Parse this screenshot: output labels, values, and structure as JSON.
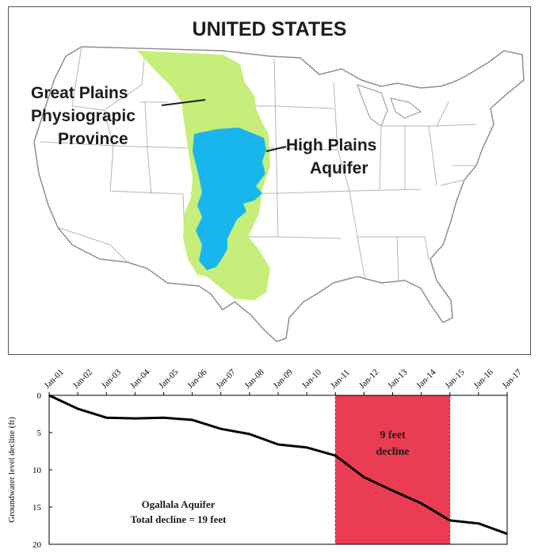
{
  "map": {
    "title": "UNITED STATES",
    "label_province": [
      "Great Plains",
      "Physiograpic",
      "Province"
    ],
    "label_aquifer": [
      "High Plains",
      "Aquifer"
    ],
    "colors": {
      "great_plains": "#c6ee7a",
      "high_plains_aquifer": "#19b6ee",
      "state_lines": "#b5b5b5",
      "outline": "#8f8f8f"
    }
  },
  "chart_data": {
    "type": "line",
    "ylabel": "Groundwater level decline (ft)",
    "x_ticks": [
      "Jan-01",
      "Jan-02",
      "Jan-03",
      "Jan-04",
      "Jan-05",
      "Jan-06",
      "Jan-07",
      "Jan-08",
      "Jan-09",
      "Jan-10",
      "Jan-11",
      "Jan-12",
      "Jan-13",
      "Jan-14",
      "Jan-15",
      "Jan-16",
      "Jan-17"
    ],
    "y_ticks": [
      0,
      5,
      10,
      15,
      20
    ],
    "ylim": [
      0,
      20
    ],
    "y_inverted": true,
    "series": [
      {
        "x": [
          2001.0,
          2001.5,
          2002.0,
          2003.0,
          2004.0,
          2005.0,
          2006.0,
          2007.0,
          2008.0,
          2009.0,
          2010.0,
          2011.0,
          2012.0,
          2013.0,
          2014.0,
          2015.0,
          2016.0,
          2017.0
        ],
        "y": [
          0,
          0.9,
          1.8,
          3.0,
          3.1,
          3.0,
          3.3,
          4.5,
          5.2,
          6.6,
          7.0,
          8.1,
          11.0,
          12.8,
          14.5,
          16.8,
          17.2,
          18.6
        ],
        "color": "#000000"
      }
    ],
    "highlight": {
      "x_start": 2011.0,
      "x_end": 2015.0,
      "color": "#ea3c52",
      "text": [
        "9 feet",
        "decline"
      ]
    },
    "annotation": [
      "Ogallala Aquifer",
      "Total decline = 19 feet"
    ]
  }
}
